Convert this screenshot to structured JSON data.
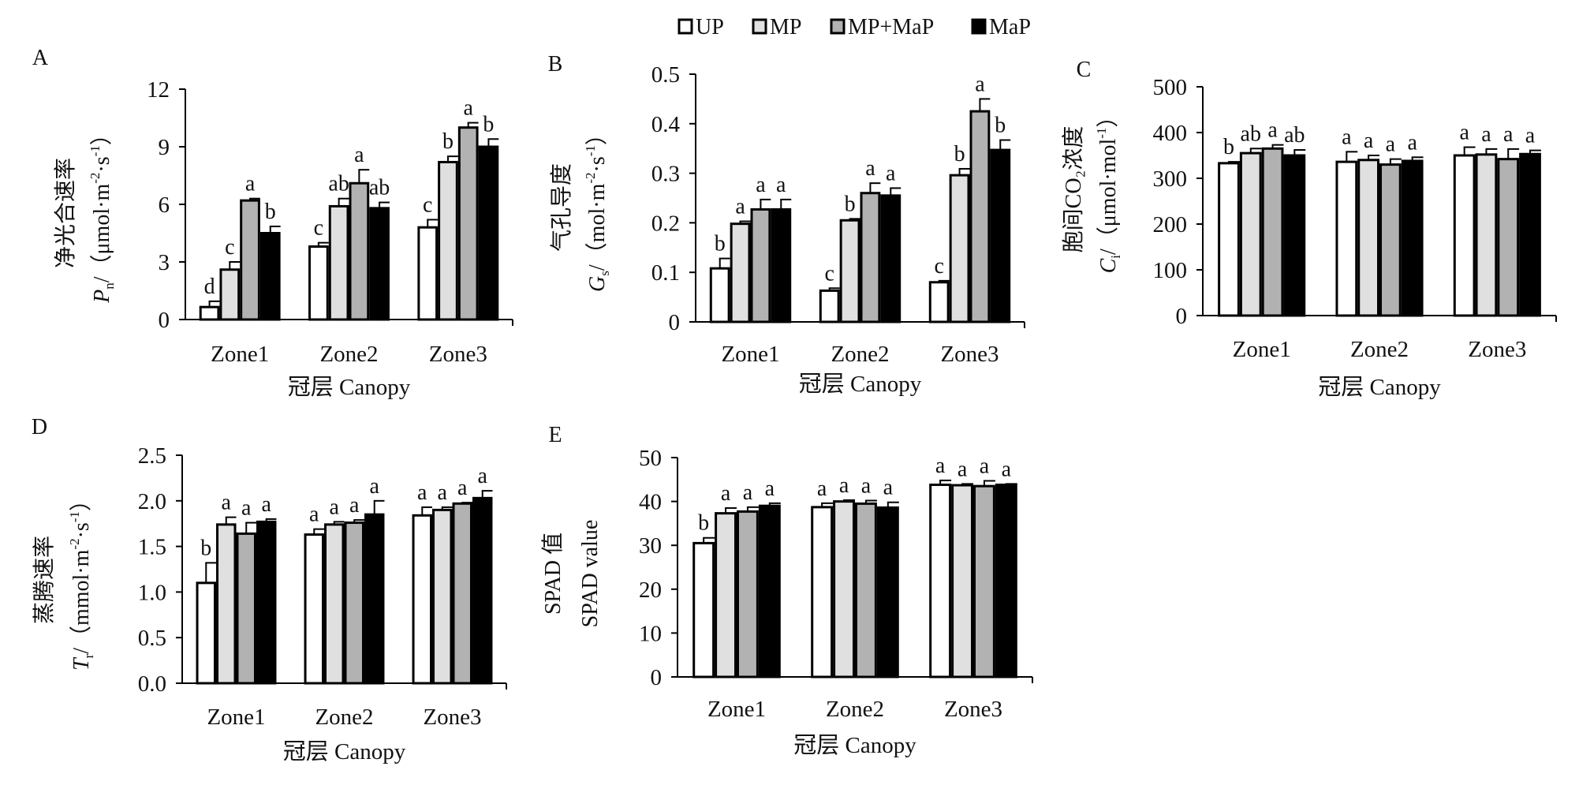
{
  "legend": [
    {
      "name": "UP",
      "color": "#ffffff"
    },
    {
      "name": "MP",
      "color": "#e0e0e0"
    },
    {
      "name": "MP+MaP",
      "color": "#b2b2b2"
    },
    {
      "name": "MaP",
      "color": "#000000"
    }
  ],
  "chart_data": [
    {
      "type": "bar",
      "panel": "A",
      "categories": [
        "Zone1",
        "Zone2",
        "Zone3"
      ],
      "xlabel": "冠层 Canopy",
      "ylabel_cn": "净光合速率",
      "ylabel_unit": [
        {
          "t": "P",
          "s": "i"
        },
        {
          "t": "n",
          "s": "sub"
        },
        {
          "t": "/（μmol·m"
        },
        {
          "t": "-2",
          "s": "sup"
        },
        {
          "t": "·s"
        },
        {
          "t": "-1",
          "s": "sup"
        },
        {
          "t": "）"
        }
      ],
      "ylim": [
        0,
        12
      ],
      "yticks": [
        "0",
        "3",
        "6",
        "9",
        "12"
      ],
      "series": [
        {
          "name": "UP",
          "values": [
            0.65,
            3.8,
            4.8
          ],
          "errors": [
            0.3,
            0.2,
            0.4
          ],
          "letters": [
            "d",
            "c",
            "c"
          ]
        },
        {
          "name": "MP",
          "values": [
            2.6,
            5.9,
            8.2
          ],
          "errors": [
            0.4,
            0.4,
            0.3
          ],
          "letters": [
            "c",
            "ab",
            "b"
          ]
        },
        {
          "name": "MP+MaP",
          "values": [
            6.2,
            7.1,
            10.0
          ],
          "errors": [
            0.1,
            0.7,
            0.25
          ],
          "letters": [
            "a",
            "a",
            "a"
          ]
        },
        {
          "name": "MaP",
          "values": [
            4.5,
            5.8,
            9.0
          ],
          "errors": [
            0.35,
            0.3,
            0.4
          ],
          "letters": [
            "b",
            "ab",
            "b"
          ]
        }
      ]
    },
    {
      "type": "bar",
      "panel": "B",
      "categories": [
        "Zone1",
        "Zone2",
        "Zone3"
      ],
      "xlabel": "冠层 Canopy",
      "ylabel_cn": "气孔导度",
      "ylabel_unit": [
        {
          "t": "G",
          "s": "i"
        },
        {
          "t": "s",
          "s": "sub"
        },
        {
          "t": "/（mol·m"
        },
        {
          "t": "-2",
          "s": "sup"
        },
        {
          "t": "·s"
        },
        {
          "t": "-1",
          "s": "sup"
        },
        {
          "t": "）"
        }
      ],
      "ylim": [
        0,
        0.5
      ],
      "yticks": [
        "0",
        "0.1",
        "0.2",
        "0.3",
        "0.4",
        "0.5"
      ],
      "series": [
        {
          "name": "UP",
          "values": [
            0.108,
            0.063,
            0.08
          ],
          "errors": [
            0.02,
            0.005,
            0.003
          ],
          "letters": [
            "b",
            "c",
            "c"
          ]
        },
        {
          "name": "MP",
          "values": [
            0.198,
            0.205,
            0.296
          ],
          "errors": [
            0.005,
            0.003,
            0.013
          ],
          "letters": [
            "a",
            "b",
            "b"
          ]
        },
        {
          "name": "MP+MaP",
          "values": [
            0.227,
            0.26,
            0.425
          ],
          "errors": [
            0.02,
            0.02,
            0.025
          ],
          "letters": [
            "a",
            "a",
            "a"
          ]
        },
        {
          "name": "MaP",
          "values": [
            0.227,
            0.255,
            0.347
          ],
          "errors": [
            0.02,
            0.015,
            0.02
          ],
          "letters": [
            "a",
            "a",
            "b"
          ]
        }
      ]
    },
    {
      "type": "bar",
      "panel": "C",
      "categories": [
        "Zone1",
        "Zone2",
        "Zone3"
      ],
      "xlabel": "冠层 Canopy",
      "ylabel_cn": "胞间CO₂浓度",
      "ylabel_unit": [
        {
          "t": "C",
          "s": "i"
        },
        {
          "t": "i",
          "s": "sub"
        },
        {
          "t": "/（μmol·mol"
        },
        {
          "t": "-1",
          "s": "sup"
        },
        {
          "t": "）"
        }
      ],
      "ylim": [
        0,
        500
      ],
      "yticks": [
        "0",
        "100",
        "200",
        "300",
        "400",
        "500"
      ],
      "series": [
        {
          "name": "UP",
          "values": [
            333,
            336,
            350
          ],
          "errors": [
            3,
            22,
            18
          ],
          "letters": [
            "b",
            "a",
            "a"
          ]
        },
        {
          "name": "MP",
          "values": [
            355,
            340,
            352
          ],
          "errors": [
            10,
            10,
            12
          ],
          "letters": [
            "ab",
            "a",
            "a"
          ]
        },
        {
          "name": "MP+MaP",
          "values": [
            365,
            330,
            342
          ],
          "errors": [
            8,
            12,
            22
          ],
          "letters": [
            "a",
            "a",
            "a"
          ]
        },
        {
          "name": "MaP",
          "values": [
            350,
            338,
            353
          ],
          "errors": [
            12,
            8,
            8
          ],
          "letters": [
            "ab",
            "a",
            "a"
          ]
        }
      ]
    },
    {
      "type": "bar",
      "panel": "D",
      "categories": [
        "Zone1",
        "Zone2",
        "Zone3"
      ],
      "xlabel": "冠层 Canopy",
      "ylabel_cn": "蒸腾速率",
      "ylabel_unit": [
        {
          "t": "T",
          "s": "i"
        },
        {
          "t": "r",
          "s": "sub"
        },
        {
          "t": "/（mmol·m"
        },
        {
          "t": "-2",
          "s": "sup"
        },
        {
          "t": "·s"
        },
        {
          "t": "-1",
          "s": "sup"
        },
        {
          "t": "）"
        }
      ],
      "ylim": [
        0,
        2.5
      ],
      "yticks": [
        "0.0",
        "0.5",
        "1.0",
        "1.5",
        "2.0",
        "2.5"
      ],
      "series": [
        {
          "name": "UP",
          "values": [
            1.1,
            1.63,
            1.84
          ],
          "errors": [
            0.22,
            0.06,
            0.09
          ],
          "letters": [
            "b",
            "a",
            "a"
          ]
        },
        {
          "name": "MP",
          "values": [
            1.74,
            1.74,
            1.9
          ],
          "errors": [
            0.08,
            0.03,
            0.03
          ],
          "letters": [
            "a",
            "a",
            "a"
          ]
        },
        {
          "name": "MP+MaP",
          "values": [
            1.64,
            1.76,
            1.97
          ],
          "errors": [
            0.12,
            0.03,
            0.01
          ],
          "letters": [
            "a",
            "a",
            "a"
          ]
        },
        {
          "name": "MaP",
          "values": [
            1.77,
            1.85,
            2.03
          ],
          "errors": [
            0.03,
            0.15,
            0.08
          ],
          "letters": [
            "a",
            "a",
            "a"
          ]
        }
      ]
    },
    {
      "type": "bar",
      "panel": "E",
      "categories": [
        "Zone1",
        "Zone2",
        "Zone3"
      ],
      "xlabel": "冠层 Canopy",
      "ylabel_cn": "SPAD 值",
      "ylabel_unit": [
        {
          "t": "SPAD value"
        }
      ],
      "ylim": [
        0,
        50
      ],
      "yticks": [
        "0",
        "10",
        "20",
        "30",
        "40",
        "50"
      ],
      "series": [
        {
          "name": "UP",
          "values": [
            30.5,
            38.7,
            43.8
          ],
          "errors": [
            1.2,
            0.9,
            1.0
          ],
          "letters": [
            "b",
            "a",
            "a"
          ]
        },
        {
          "name": "MP",
          "values": [
            37.3,
            40.0,
            43.7
          ],
          "errors": [
            1.2,
            0.3,
            0.3
          ],
          "letters": [
            "a",
            "a",
            "a"
          ]
        },
        {
          "name": "MP+MaP",
          "values": [
            37.7,
            39.5,
            43.5
          ],
          "errors": [
            1.0,
            0.7,
            1.2
          ],
          "letters": [
            "a",
            "a",
            "a"
          ]
        },
        {
          "name": "MaP",
          "values": [
            39.0,
            38.6,
            43.8
          ],
          "errors": [
            0.6,
            1.2,
            0.2
          ],
          "letters": [
            "a",
            "a",
            "a"
          ]
        }
      ]
    }
  ]
}
